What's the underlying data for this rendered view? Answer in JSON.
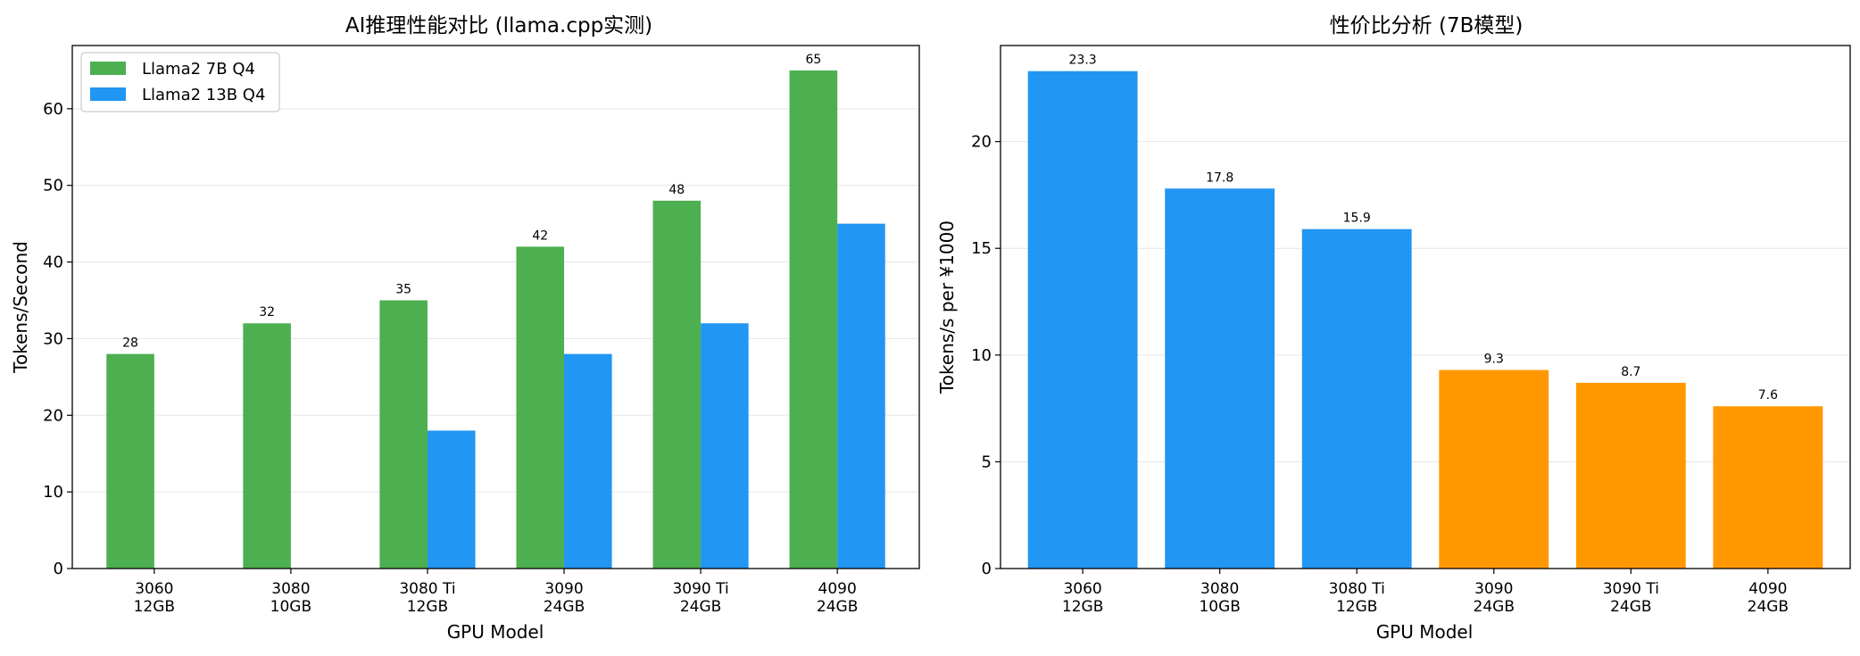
{
  "chart_data": [
    {
      "type": "bar",
      "title": "AI推理性能对比 (llama.cpp实测)",
      "xlabel": "GPU Model",
      "ylabel": "Tokens/Second",
      "categories": [
        "3060\n12GB",
        "3080\n10GB",
        "3080 Ti\n12GB",
        "3090\n24GB",
        "3090 Ti\n24GB",
        "4090\n24GB"
      ],
      "series": [
        {
          "name": "Llama2 7B Q4",
          "color": "#4CAF50",
          "values": [
            28,
            32,
            35,
            42,
            48,
            65
          ],
          "show_labels": true
        },
        {
          "name": "Llama2 13B Q4",
          "color": "#2196F3",
          "values": [
            0,
            0,
            18,
            28,
            32,
            45
          ],
          "show_labels": false
        }
      ],
      "ylim": [
        0,
        68.25
      ],
      "yticks": [
        0,
        10,
        20,
        30,
        40,
        50,
        60
      ],
      "grid": "y",
      "legend": "top-left"
    },
    {
      "type": "bar",
      "title": "性价比分析 (7B模型)",
      "xlabel": "GPU Model",
      "ylabel": "Tokens/s per ¥1000",
      "categories": [
        "3060\n12GB",
        "3080\n10GB",
        "3080 Ti\n12GB",
        "3090\n24GB",
        "3090 Ti\n24GB",
        "4090\n24GB"
      ],
      "values": [
        23.3,
        17.8,
        15.9,
        9.3,
        8.7,
        7.6
      ],
      "colors": [
        "#2196F3",
        "#2196F3",
        "#2196F3",
        "#FF9800",
        "#FF9800",
        "#FF9800"
      ],
      "ylim": [
        0,
        24.5
      ],
      "yticks": [
        0,
        5,
        10,
        15,
        20
      ],
      "grid": "y"
    }
  ]
}
